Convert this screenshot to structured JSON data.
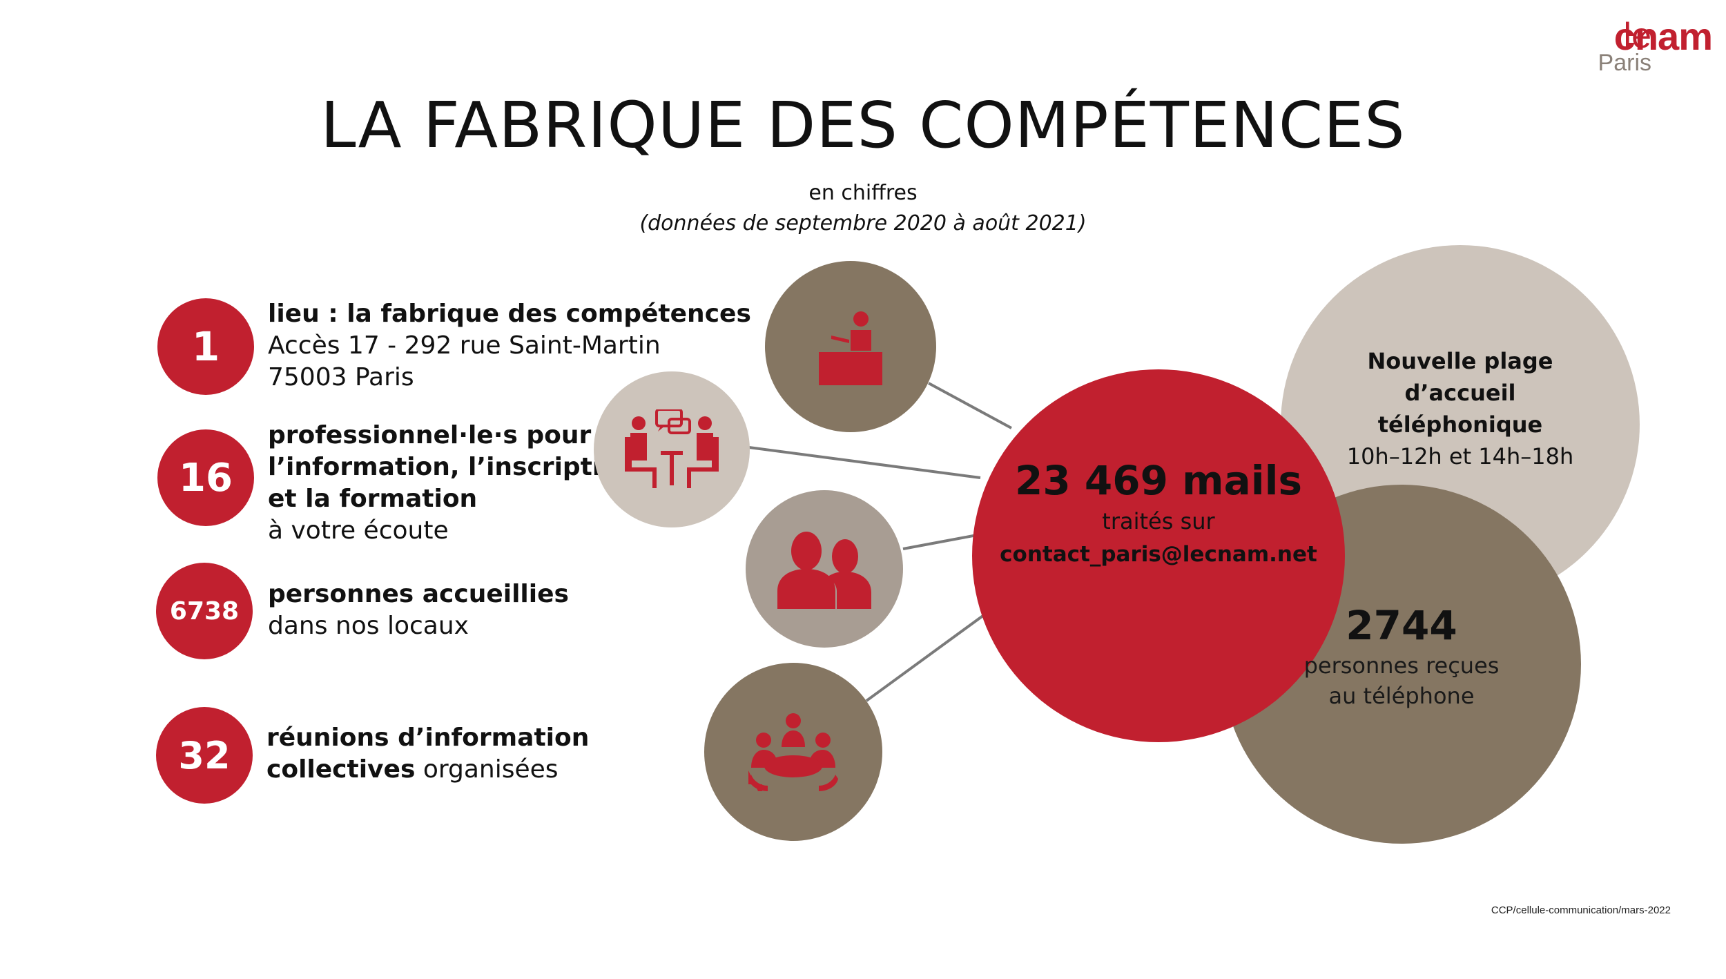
{
  "logo": {
    "le": "le",
    "cnam": "cnam",
    "city": "Paris"
  },
  "header": {
    "title": "LA FABRIQUE DES COMPÉTENCES",
    "subtitle": "en chiffres",
    "period": "(données de septembre 2020 à août 2021)"
  },
  "stats": [
    {
      "number": "1",
      "bold_lines": [
        "lieu : la fabrique des compétences"
      ],
      "lines": [
        "Accès 17  - 292 rue Saint-Martin",
        "75003 Paris"
      ]
    },
    {
      "number": "16",
      "bold_lines": [
        "professionnel·le·s pour",
        "l’information, l’inscription",
        "et la formation"
      ],
      "lines": [
        "à votre écoute"
      ]
    },
    {
      "number": "6738",
      "bold_lines": [
        "personnes accueillies"
      ],
      "lines": [
        "dans nos locaux"
      ]
    },
    {
      "number": "32",
      "bold_lines": [
        "réunions d’information",
        "collectives"
      ],
      "inline_suffix": " organisées"
    }
  ],
  "bubbles": {
    "mails": {
      "number": "23 469 mails",
      "line1": "traités sur",
      "email": "contact_paris@lecnam.net"
    },
    "phone_hours": {
      "line1": "Nouvelle plage",
      "line2": "d’accueil téléphonique",
      "line3": "10h–12h et 14h–18h"
    },
    "phone_count": {
      "number": "2744",
      "line1": "personnes reçues",
      "line2": "au téléphone"
    }
  },
  "icons": [
    "reception-desk-icon",
    "conversation-icon",
    "people-icon",
    "meeting-icon"
  ],
  "colors": {
    "red": "#c1202f",
    "brown": "#857662",
    "beige": "#cdc4bb",
    "grey": "#a89d93"
  },
  "footer": {
    "credit": "CCP/cellule-communication/mars-2022"
  }
}
